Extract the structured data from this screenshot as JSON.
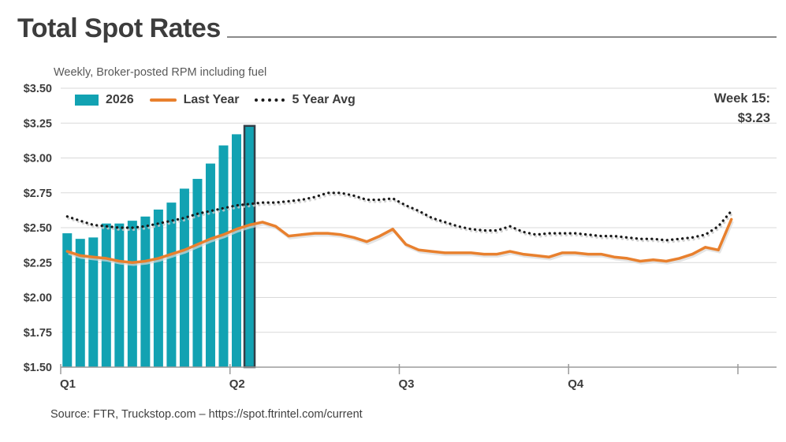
{
  "header": {
    "title": "Total Spot Rates",
    "subtitle": "Weekly, Broker-posted RPM including fuel"
  },
  "legend": {
    "items": [
      {
        "label": "2026",
        "swatch": "bar"
      },
      {
        "label": "Last Year",
        "swatch": "line"
      },
      {
        "label": "5 Year Avg",
        "swatch": "dotted"
      }
    ]
  },
  "annotation": {
    "label": "Week 15:",
    "value": "$3.23"
  },
  "footer": {
    "source": "Source: FTR, Truckstop.com – https://spot.ftrintel.com/current"
  },
  "colors": {
    "teal": "#12a2b2",
    "orange": "#e8802e",
    "dotted": "#1a1a1a",
    "highlight_border": "#333f48",
    "grid": "#d9d9d9",
    "axis": "#9b9b9b",
    "text_dark": "#3d3d3d"
  },
  "chart_data": {
    "type": "combo",
    "title": "Total Spot Rates",
    "subtitle": "Weekly, Broker-posted RPM including fuel",
    "x_axis": {
      "unit": "week",
      "count": 52,
      "ticks": [
        {
          "week": 0,
          "label": "Q1"
        },
        {
          "week": 13,
          "label": "Q2"
        },
        {
          "week": 26,
          "label": "Q3"
        },
        {
          "week": 39,
          "label": "Q4"
        },
        {
          "week": 52,
          "label": ""
        }
      ]
    },
    "y_axis": {
      "min": 1.5,
      "max": 3.5,
      "step": 0.25,
      "tick_labels": [
        "$3.50",
        "$3.25",
        "$3.00",
        "$2.75",
        "$2.50",
        "$2.25",
        "$2.00",
        "$1.75",
        "$1.50"
      ],
      "grid": true
    },
    "legend_position": "top-left",
    "annotation": {
      "label": "Week 15:",
      "value": "$3.23",
      "week": 15
    },
    "series": [
      {
        "name": "2026",
        "type": "bar",
        "color": "#12a2b2",
        "start_week": 1,
        "values": [
          2.46,
          2.42,
          2.43,
          2.53,
          2.53,
          2.55,
          2.58,
          2.63,
          2.68,
          2.78,
          2.85,
          2.96,
          3.09,
          3.17,
          3.23
        ],
        "highlight": {
          "week": 15,
          "border_color": "#333f48"
        }
      },
      {
        "name": "Last Year",
        "type": "line",
        "color": "#e8802e",
        "values": [
          2.33,
          2.3,
          2.29,
          2.28,
          2.26,
          2.25,
          2.26,
          2.28,
          2.31,
          2.34,
          2.38,
          2.42,
          2.45,
          2.49,
          2.52,
          2.54,
          2.51,
          2.44,
          2.45,
          2.46,
          2.46,
          2.45,
          2.43,
          2.4,
          2.44,
          2.49,
          2.38,
          2.34,
          2.33,
          2.32,
          2.32,
          2.32,
          2.31,
          2.31,
          2.33,
          2.31,
          2.3,
          2.29,
          2.32,
          2.32,
          2.31,
          2.31,
          2.29,
          2.28,
          2.26,
          2.27,
          2.26,
          2.28,
          2.31,
          2.36,
          2.34,
          2.56
        ]
      },
      {
        "name": "5 Year Avg",
        "type": "dotted-line",
        "color": "#1a1a1a",
        "values": [
          2.58,
          2.55,
          2.52,
          2.51,
          2.5,
          2.5,
          2.51,
          2.53,
          2.55,
          2.57,
          2.6,
          2.62,
          2.64,
          2.66,
          2.67,
          2.68,
          2.68,
          2.69,
          2.7,
          2.72,
          2.75,
          2.75,
          2.73,
          2.7,
          2.7,
          2.71,
          2.66,
          2.62,
          2.57,
          2.54,
          2.51,
          2.49,
          2.48,
          2.48,
          2.51,
          2.47,
          2.45,
          2.46,
          2.46,
          2.46,
          2.45,
          2.44,
          2.44,
          2.43,
          2.42,
          2.42,
          2.41,
          2.42,
          2.43,
          2.45,
          2.51,
          2.62
        ]
      }
    ]
  }
}
